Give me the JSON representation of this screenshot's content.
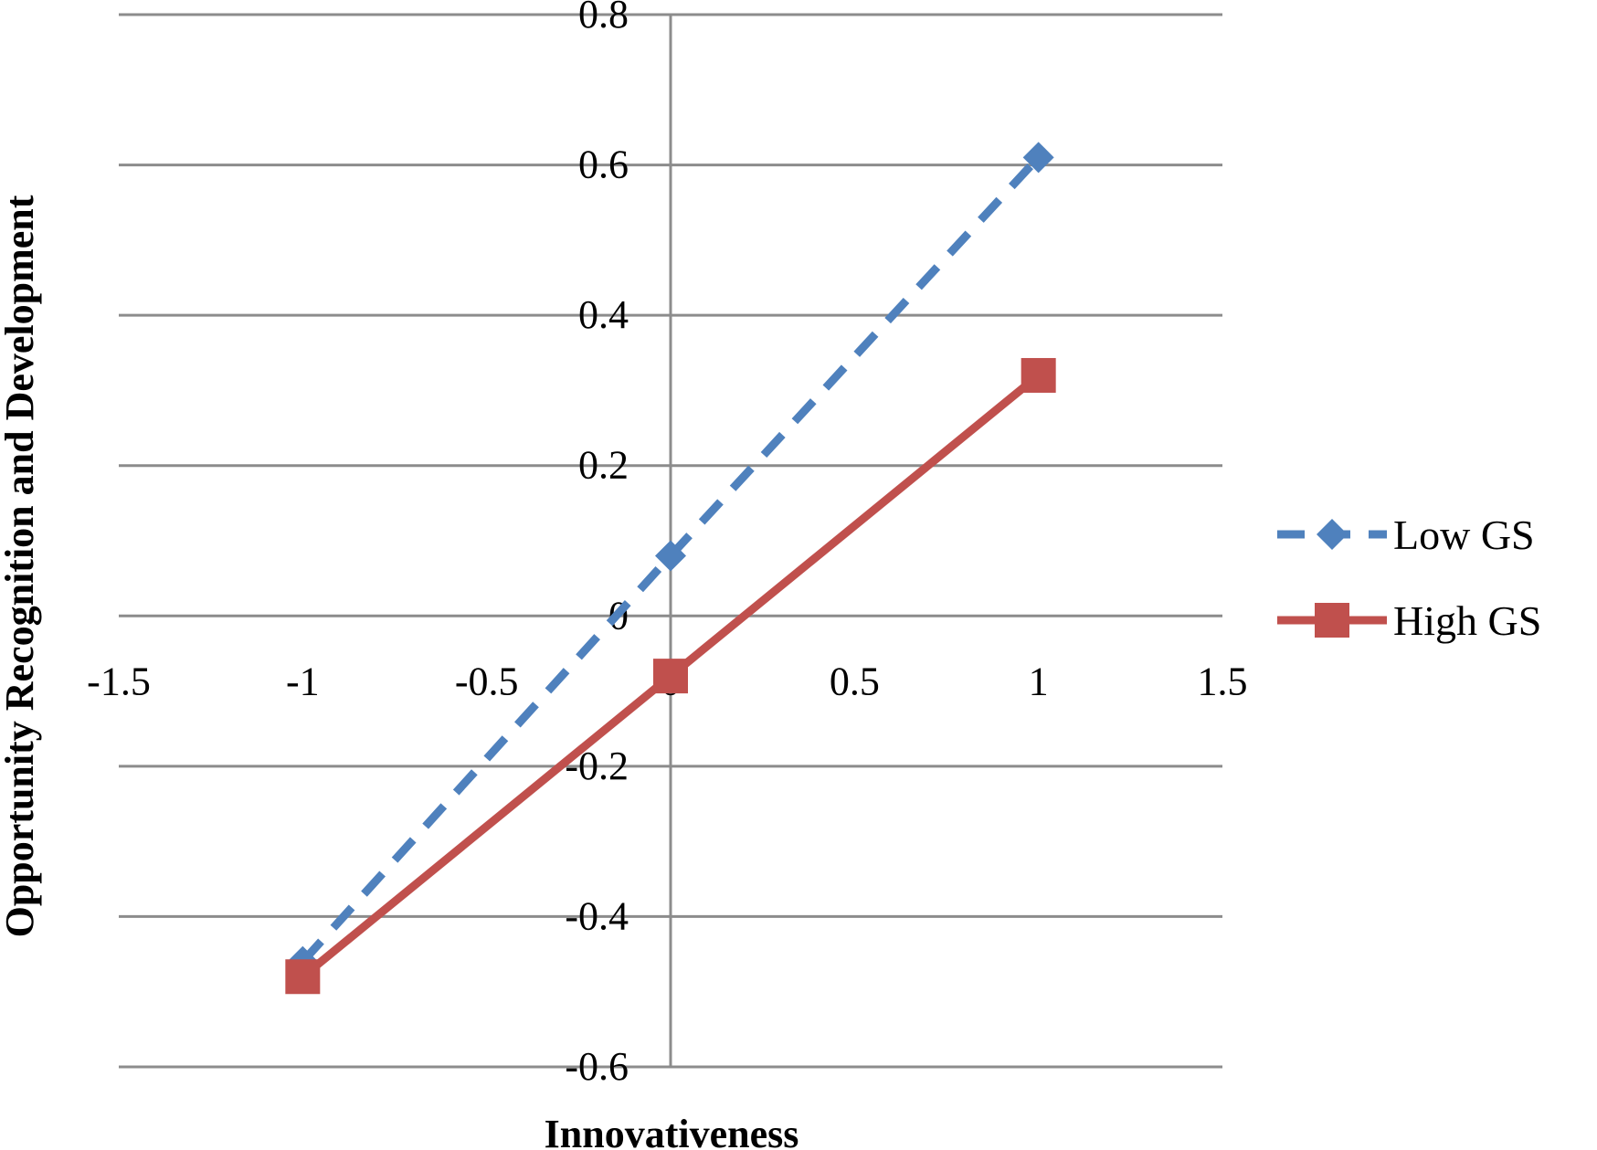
{
  "chart_data": {
    "type": "line",
    "title": "",
    "xlabel": "Innovativeness",
    "ylabel": "Opportunity Recognition and Development",
    "xlim": [
      -1.5,
      1.5
    ],
    "ylim": [
      -0.6,
      0.8
    ],
    "x_ticks": [
      "-1.5",
      "-1",
      "-0.5",
      "0",
      "0.5",
      "1",
      "1.5"
    ],
    "y_ticks": [
      "0.8",
      "0.6",
      "0.4",
      "0.2",
      "0",
      "-0.2",
      "-0.4",
      "-0.6"
    ],
    "grid": "horizontal",
    "legend_position": "right",
    "series": [
      {
        "name": "Low GS",
        "x": [
          -1,
          0,
          1
        ],
        "values": [
          -0.46,
          0.08,
          0.61
        ],
        "color": "#4F81BD",
        "line_style": "dashed",
        "marker": "diamond"
      },
      {
        "name": "High GS",
        "x": [
          -1,
          0,
          1
        ],
        "values": [
          -0.48,
          -0.08,
          0.32
        ],
        "color": "#C0504D",
        "line_style": "solid",
        "marker": "square"
      }
    ]
  }
}
